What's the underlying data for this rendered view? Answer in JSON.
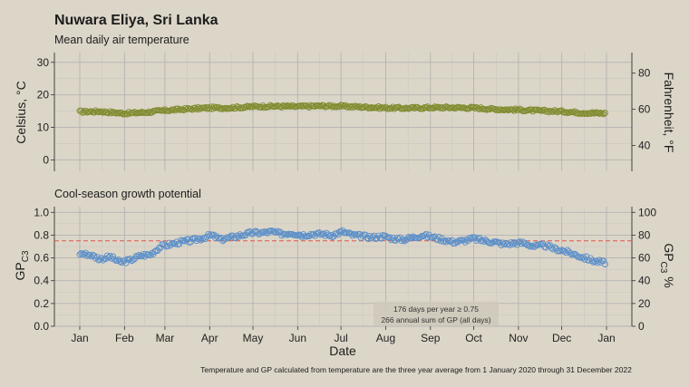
{
  "title": "Nuwara Eliya, Sri Lanka",
  "caption": "Temperature and GP calculated from temperature are the three year average from 1 January 2020 through 31 December 2022",
  "chart_data": [
    {
      "type": "scatter",
      "subtitle": "Mean daily air temperature",
      "ylabel": "Celsius, °C",
      "ylabel_right": "Fahrenheit, °F",
      "ylim": [
        -3.5,
        33
      ],
      "yticks": [
        0,
        10,
        20,
        30
      ],
      "yticks_right": [
        40,
        60,
        80
      ],
      "grid": true,
      "point_color": "#7f8a2c",
      "series": [
        {
          "day_of_year": [
            1,
            15,
            32,
            46,
            60,
            74,
            91,
            105,
            121,
            135,
            152,
            166,
            182,
            196,
            213,
            227,
            244,
            258,
            274,
            288,
            305,
            319,
            335,
            349,
            365
          ],
          "values": [
            14.8,
            14.9,
            14.3,
            14.6,
            15.2,
            15.6,
            16.0,
            16.0,
            16.4,
            16.5,
            16.4,
            16.6,
            16.5,
            16.3,
            16.0,
            15.9,
            16.1,
            16.1,
            16.0,
            15.6,
            15.4,
            15.1,
            14.9,
            14.5,
            14.3
          ]
        }
      ]
    },
    {
      "type": "scatter",
      "subtitle": "Cool-season growth potential",
      "xlabel": "Date",
      "xticks": [
        "Jan",
        "Feb",
        "Mar",
        "Apr",
        "May",
        "Jun",
        "Jul",
        "Aug",
        "Sep",
        "Oct",
        "Nov",
        "Dec",
        "Jan"
      ],
      "ylabel": "GP C3",
      "ylabel_right": "GP C3 %",
      "ylim": [
        0,
        1.05
      ],
      "yticks": [
        "0.0",
        "0.2",
        "0.4",
        "0.6",
        "0.8",
        "1.0"
      ],
      "yticks_right": [
        "0",
        "20",
        "40",
        "60",
        "80",
        "100"
      ],
      "threshold": 0.75,
      "grid": true,
      "point_color": "#5b8fc9",
      "annotations": [
        "176 days per year ≥ 0.75",
        "266 annual sum of GP (all days)"
      ],
      "series": [
        {
          "day_of_year": [
            1,
            8,
            15,
            22,
            29,
            36,
            43,
            50,
            57,
            64,
            71,
            78,
            85,
            92,
            99,
            106,
            113,
            120,
            127,
            134,
            141,
            148,
            155,
            162,
            169,
            176,
            183,
            190,
            197,
            204,
            211,
            218,
            225,
            232,
            239,
            246,
            253,
            260,
            267,
            274,
            281,
            288,
            295,
            302,
            309,
            316,
            323,
            330,
            337,
            344,
            351,
            358,
            365
          ],
          "values": [
            0.64,
            0.63,
            0.59,
            0.61,
            0.56,
            0.58,
            0.62,
            0.63,
            0.7,
            0.72,
            0.74,
            0.75,
            0.77,
            0.8,
            0.76,
            0.78,
            0.8,
            0.82,
            0.82,
            0.83,
            0.81,
            0.82,
            0.8,
            0.81,
            0.81,
            0.8,
            0.83,
            0.8,
            0.79,
            0.78,
            0.79,
            0.77,
            0.76,
            0.78,
            0.8,
            0.78,
            0.76,
            0.74,
            0.75,
            0.77,
            0.75,
            0.74,
            0.72,
            0.73,
            0.73,
            0.7,
            0.71,
            0.68,
            0.66,
            0.63,
            0.6,
            0.57,
            0.56
          ]
        }
      ]
    }
  ]
}
